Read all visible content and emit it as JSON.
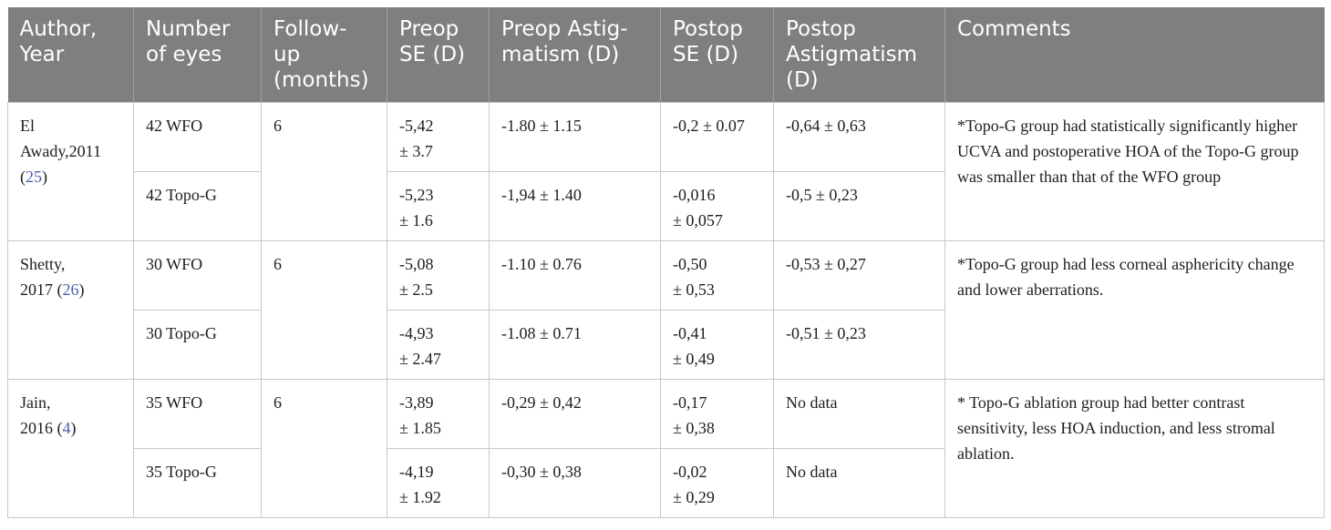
{
  "headers": [
    {
      "line1": "Author,",
      "line2": "Year",
      "line3": ""
    },
    {
      "line1": "Number",
      "line2": "of eyes",
      "line3": ""
    },
    {
      "line1": "Follow-",
      "line2": "up",
      "line3": "(months)"
    },
    {
      "line1": "Preop",
      "line2": "SE (D)",
      "line3": ""
    },
    {
      "line1": "Preop Astig-",
      "line2": "matism (D)",
      "line3": ""
    },
    {
      "line1": "Postop",
      "line2": "SE (D)",
      "line3": ""
    },
    {
      "line1": "Postop",
      "line2": "Astigmatism",
      "line3": "(D)"
    },
    {
      "line1": "Comments",
      "line2": "",
      "line3": ""
    }
  ],
  "studies": [
    {
      "author_line1": "El",
      "author_line2": "Awady,2011",
      "author_ref_open": "(",
      "author_ref": "25",
      "author_ref_close": ")",
      "followup": "6",
      "comment": "*Topo-G group had statistically significantly higher UCVA and postoperative HOA of the Topo-G group was smaller than that of the WFO group",
      "groups": [
        {
          "eyes": "42 WFO",
          "preop_se_1": "-5,42",
          "preop_se_2": "± 3.7",
          "preop_astig": "-1.80 ± 1.15",
          "postop_se_1": "-0,2 ± 0.07",
          "postop_se_2": "",
          "postop_astig": "-0,64 ± 0,63"
        },
        {
          "eyes": "42 Topo-G",
          "preop_se_1": "-5,23",
          "preop_se_2": "± 1.6",
          "preop_astig": "-1,94 ± 1.40",
          "postop_se_1": "-0,016",
          "postop_se_2": "± 0,057",
          "postop_astig": "-0,5 ± 0,23"
        }
      ]
    },
    {
      "author_line1": "Shetty,",
      "author_line2": "2017 (",
      "author_ref_open": "",
      "author_ref": "26",
      "author_ref_close": ")",
      "followup": "6",
      "comment": "*Topo-G group had less corneal asphericity change and lower aberrations.",
      "groups": [
        {
          "eyes": "30 WFO",
          "preop_se_1": "-5,08",
          "preop_se_2": "± 2.5",
          "preop_astig": "-1.10 ± 0.76",
          "postop_se_1": "-0,50",
          "postop_se_2": "± 0,53",
          "postop_astig": "-0,53 ± 0,27"
        },
        {
          "eyes": "30 Topo-G",
          "preop_se_1": "-4,93",
          "preop_se_2": "± 2.47",
          "preop_astig": "-1.08 ± 0.71",
          "postop_se_1": "-0,41",
          "postop_se_2": "± 0,49",
          "postop_astig": "-0,51 ± 0,23"
        }
      ]
    },
    {
      "author_line1": "Jain,",
      "author_line2": "2016 (",
      "author_ref_open": "",
      "author_ref": "4",
      "author_ref_close": ")",
      "followup": "6",
      "comment": "* Topo-G ablation group had better contrast sensitivity, less HOA induction, and less stromal ablation.",
      "groups": [
        {
          "eyes": "35 WFO",
          "preop_se_1": "-3,89",
          "preop_se_2": "± 1.85",
          "preop_astig": "-0,29 ± 0,42",
          "postop_se_1": "-0,17",
          "postop_se_2": "± 0,38",
          "postop_astig": "No data"
        },
        {
          "eyes": "35 Topo-G",
          "preop_se_1": "-4,19",
          "preop_se_2": "± 1.92",
          "preop_astig": "-0,30 ± 0,38",
          "postop_se_1": "-0,02",
          "postop_se_2": "± 0,29",
          "postop_astig": "No data"
        }
      ]
    }
  ],
  "colors": {
    "header_bg": "#7f7f7f",
    "header_text": "#ffffff",
    "reference_link": "#4a5ea8",
    "border": "#c8c8c8"
  }
}
